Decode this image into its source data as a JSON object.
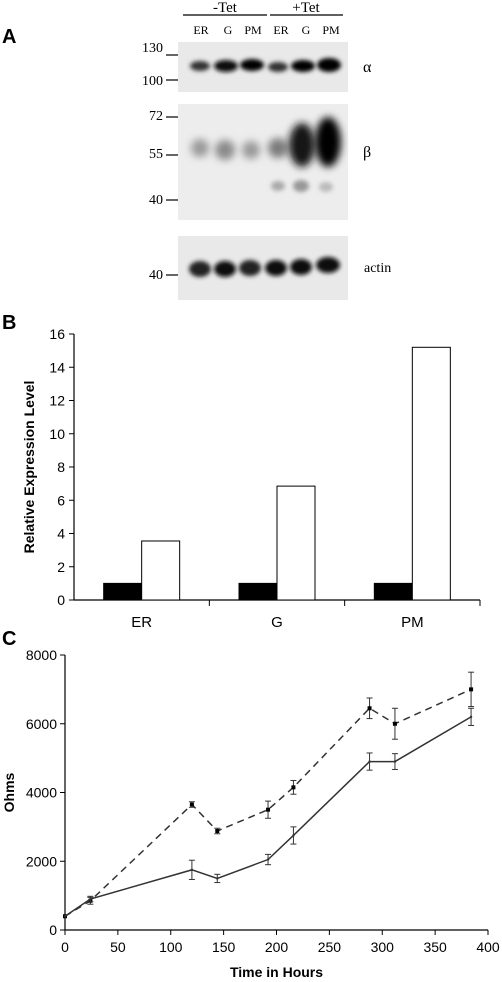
{
  "panels": {
    "a": {
      "letter": "A",
      "header_minus": "-Tet",
      "header_plus": "+Tet",
      "lanes": [
        "ER",
        "G",
        "PM",
        "ER",
        "G",
        "PM"
      ],
      "alpha": {
        "label": "α",
        "markers": [
          "130",
          "100"
        ]
      },
      "beta": {
        "label": "β",
        "markers": [
          "72",
          "55",
          "40"
        ]
      },
      "actin": {
        "label": "actin",
        "markers": [
          "40"
        ]
      }
    },
    "b": {
      "letter": "B"
    },
    "c": {
      "letter": "C"
    }
  },
  "chart_data": [
    {
      "type": "bar",
      "ylabel": "Relative Expression Level",
      "xlabel": "",
      "ylim": [
        0,
        16
      ],
      "yticks": [
        0,
        2,
        4,
        6,
        8,
        10,
        12,
        14,
        16
      ],
      "categories": [
        "ER",
        "G",
        "PM"
      ],
      "series": [
        {
          "values": [
            1,
            1,
            1
          ],
          "color": "#000000"
        },
        {
          "values": [
            3.55,
            6.85,
            15.2
          ],
          "color": "#ffffff"
        }
      ],
      "grid": false,
      "legend": "none"
    },
    {
      "type": "line",
      "ylabel": "Ohms",
      "xlabel": "Time in Hours",
      "xlim": [
        0,
        400
      ],
      "ylim": [
        0,
        8000
      ],
      "xticks": [
        0,
        50,
        100,
        150,
        200,
        250,
        300,
        350,
        400
      ],
      "yticks": [
        0,
        2000,
        4000,
        6000,
        8000
      ],
      "series": [
        {
          "style": "dashed",
          "points": [
            [
              0,
              400
            ],
            [
              24,
              850
            ],
            [
              120,
              3650
            ],
            [
              144,
              2880
            ],
            [
              192,
              3500
            ],
            [
              216,
              4150
            ],
            [
              288,
              6450
            ],
            [
              312,
              6000
            ],
            [
              384,
              7000
            ]
          ],
          "errors": [
            0,
            100,
            80,
            80,
            250,
            200,
            300,
            450,
            500
          ]
        },
        {
          "style": "solid",
          "points": [
            [
              0,
              400
            ],
            [
              24,
              900
            ],
            [
              120,
              1750
            ],
            [
              144,
              1500
            ],
            [
              192,
              2050
            ],
            [
              216,
              2750
            ],
            [
              288,
              4900
            ],
            [
              312,
              4900
            ],
            [
              384,
              6200
            ]
          ],
          "errors": [
            0,
            80,
            280,
            120,
            150,
            250,
            250,
            230,
            250
          ]
        }
      ],
      "grid": false,
      "legend": "none"
    }
  ]
}
